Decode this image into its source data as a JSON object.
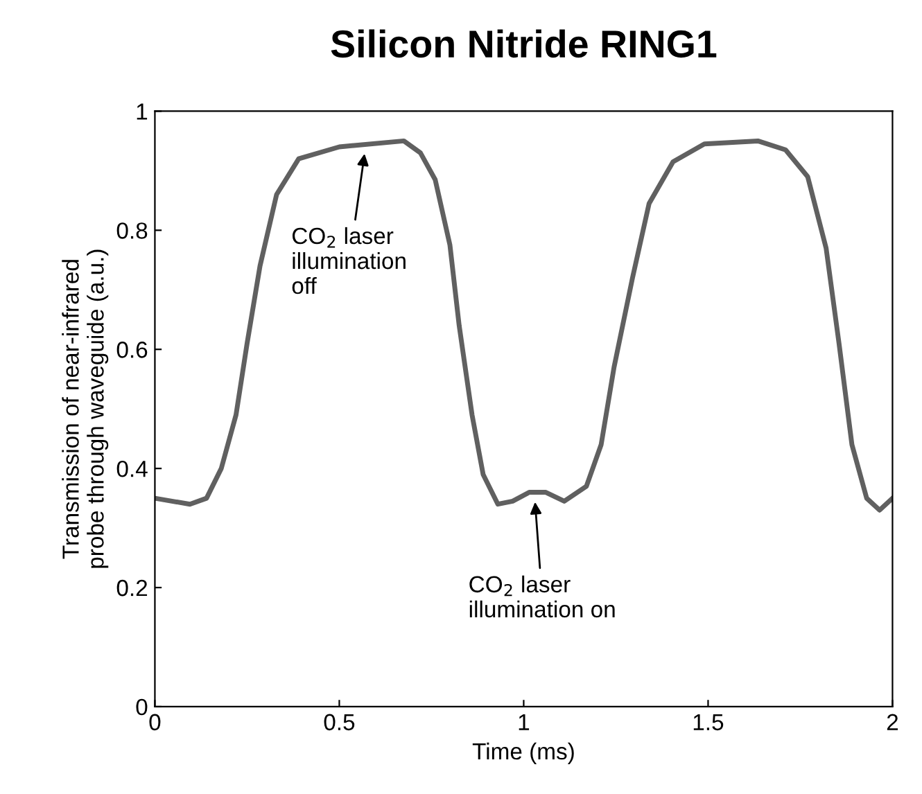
{
  "chart_data": {
    "type": "line",
    "title": "Silicon Nitride RING1",
    "xlabel": "Time (ms)",
    "ylabel": "Transmission of near-infrared\nprobe through waveguide (a.u.)",
    "series": [
      {
        "color": "#606060",
        "x": [
          0,
          0.095,
          0.14,
          0.18,
          0.22,
          0.25,
          0.285,
          0.33,
          0.39,
          0.5,
          0.675,
          0.72,
          0.76,
          0.8,
          0.825,
          0.86,
          0.89,
          0.93,
          0.97,
          1.015,
          1.06,
          1.11,
          1.17,
          1.21,
          1.245,
          1.295,
          1.34,
          1.405,
          1.49,
          1.635,
          1.71,
          1.77,
          1.82,
          1.855,
          1.89,
          1.93,
          1.965,
          2.0
        ],
        "values": [
          0.35,
          0.34,
          0.35,
          0.4,
          0.49,
          0.61,
          0.74,
          0.86,
          0.92,
          0.94,
          0.95,
          0.93,
          0.885,
          0.775,
          0.64,
          0.49,
          0.39,
          0.34,
          0.345,
          0.36,
          0.36,
          0.345,
          0.37,
          0.44,
          0.57,
          0.72,
          0.845,
          0.915,
          0.945,
          0.95,
          0.935,
          0.89,
          0.77,
          0.61,
          0.44,
          0.35,
          0.33,
          0.35
        ]
      }
    ],
    "annotations": [
      {
        "text": "CO$_{2}$ laser\nillumination\noff",
        "x": 0.57,
        "y": 0.935
      },
      {
        "text": "CO$_{2}$ laser\nillumination on",
        "x": 1.03,
        "y": 0.35
      }
    ],
    "xlim": [
      0,
      2
    ],
    "ylim": [
      0,
      1
    ],
    "xticks": [
      0,
      0.5,
      1,
      1.5,
      2
    ],
    "yticks": [
      0,
      0.2,
      0.4,
      0.6,
      0.8,
      1
    ],
    "grid": false,
    "marker": "none",
    "line_style": "solid"
  }
}
